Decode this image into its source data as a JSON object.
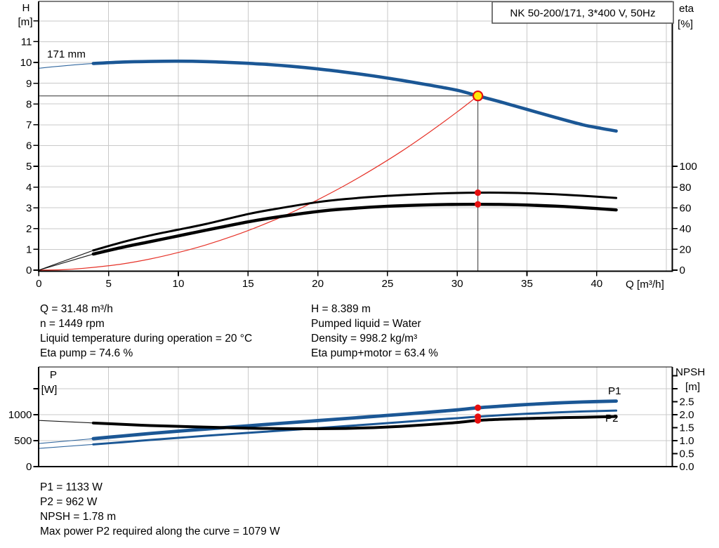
{
  "title_box": "NK 50-200/171, 3*400 V, 50Hz",
  "impeller_label": "171 mm",
  "colors": {
    "curve_blue": "#1b5795",
    "curve_red": "#e63228",
    "dot_red": "#e60f0f",
    "op_yellow": "#ffe90a",
    "grid": "#c9c9c9",
    "axis": "#000000",
    "crosshair": "#474747",
    "box_border": "#555555"
  },
  "labels": {
    "h_axis": [
      "H",
      "[m]"
    ],
    "eta_axis": [
      "eta",
      "[%]"
    ],
    "q_axis": "Q [m³/h]",
    "p_axis": [
      "P",
      "[W]"
    ],
    "npsh_axis": [
      "NPSH",
      "[m]"
    ],
    "p1": "P1",
    "p2": "P2"
  },
  "info_top": {
    "left": [
      "Q = 31.48 m³/h",
      "n = 1449 rpm",
      "Liquid temperature during operation = 20 °C",
      "Eta pump = 74.6 %"
    ],
    "right": [
      "H = 8.389 m",
      "Pumped liquid = Water",
      "Density = 998.2 kg/m³",
      "Eta pump+motor = 63.4 %"
    ]
  },
  "info_bottom": [
    "P1 = 1133 W",
    "P2 = 962 W",
    "NPSH = 1.78 m",
    "Max power P2 required along the curve = 1079 W"
  ],
  "operating_point": {
    "q": 31.48,
    "h": 8.389,
    "eta_pump": 74.6,
    "eta_pump_motor": 63.4,
    "p1": 1133,
    "p2": 962,
    "npsh": 1.78
  },
  "chart_data": [
    {
      "type": "line",
      "title": "NK 50-200/171, 3*400 V, 50Hz",
      "xlabel": "Q [m³/h]",
      "x_ticks": [
        {
          "v": 0,
          "t": "0"
        },
        {
          "v": 5,
          "t": "5"
        },
        {
          "v": 10,
          "t": "10"
        },
        {
          "v": 15,
          "t": "15"
        },
        {
          "v": 20,
          "t": "20"
        },
        {
          "v": 25,
          "t": "25"
        },
        {
          "v": 30,
          "t": "30"
        },
        {
          "v": 35,
          "t": "35"
        },
        {
          "v": 40,
          "t": "40"
        },
        {
          "v": 45,
          "t": ""
        }
      ],
      "y_left": {
        "label": "H [m]",
        "lim": [
          0,
          12.9
        ],
        "ticks": [
          {
            "v": 0,
            "t": "0"
          },
          {
            "v": 1,
            "t": "1"
          },
          {
            "v": 2,
            "t": "2"
          },
          {
            "v": 3,
            "t": "3"
          },
          {
            "v": 4,
            "t": "4"
          },
          {
            "v": 5,
            "t": "5"
          },
          {
            "v": 6,
            "t": "6"
          },
          {
            "v": 7,
            "t": "7"
          },
          {
            "v": 8,
            "t": "8"
          },
          {
            "v": 9,
            "t": "9"
          },
          {
            "v": 10,
            "t": "10"
          },
          {
            "v": 11,
            "t": "11"
          },
          {
            "v": 12,
            "t": ""
          }
        ]
      },
      "y_right": {
        "label": "eta [%]",
        "lim": [
          0,
          100
        ],
        "ticks": [
          {
            "v": 0,
            "t": "0"
          },
          {
            "v": 20,
            "t": "20"
          },
          {
            "v": 40,
            "t": "40"
          },
          {
            "v": 60,
            "t": "60"
          },
          {
            "v": 80,
            "t": "80"
          },
          {
            "v": 100,
            "t": "100"
          }
        ]
      },
      "series": [
        {
          "name": "system-curve",
          "axis": "left",
          "color": "curve_red",
          "width": 1.2,
          "points": [
            [
              0,
              0
            ],
            [
              2,
              0.03
            ],
            [
              4,
              0.14
            ],
            [
              6,
              0.3
            ],
            [
              8,
              0.54
            ],
            [
              10,
              0.85
            ],
            [
              12,
              1.22
            ],
            [
              14,
              1.66
            ],
            [
              16,
              2.17
            ],
            [
              18,
              2.74
            ],
            [
              20,
              3.39
            ],
            [
              22,
              4.1
            ],
            [
              24,
              4.88
            ],
            [
              26,
              5.72
            ],
            [
              28,
              6.64
            ],
            [
              30,
              7.62
            ],
            [
              31.48,
              8.39
            ]
          ]
        },
        {
          "name": "qh-171mm",
          "axis": "left",
          "color": "curve_blue",
          "width": 4.6,
          "thin_until": 3.9,
          "points": [
            [
              0,
              9.72
            ],
            [
              1,
              9.79
            ],
            [
              2,
              9.85
            ],
            [
              3,
              9.91
            ],
            [
              3.9,
              9.95
            ],
            [
              6,
              10.02
            ],
            [
              8,
              10.05
            ],
            [
              10,
              10.06
            ],
            [
              12,
              10.04
            ],
            [
              14,
              9.99
            ],
            [
              16,
              9.92
            ],
            [
              18,
              9.82
            ],
            [
              20,
              9.69
            ],
            [
              22,
              9.53
            ],
            [
              24,
              9.35
            ],
            [
              26,
              9.14
            ],
            [
              28,
              8.91
            ],
            [
              30,
              8.66
            ],
            [
              31.48,
              8.39
            ],
            [
              33,
              8.12
            ],
            [
              35,
              7.74
            ],
            [
              37,
              7.36
            ],
            [
              39,
              7.0
            ],
            [
              40.3,
              6.83
            ],
            [
              41.4,
              6.7
            ]
          ]
        },
        {
          "name": "eta-pump",
          "axis": "right",
          "color": "axis",
          "width": 3,
          "thin_until": 3.9,
          "points": [
            [
              0,
              0
            ],
            [
              3.9,
              19
            ],
            [
              6,
              27
            ],
            [
              8,
              33.5
            ],
            [
              10,
              39
            ],
            [
              12,
              44.5
            ],
            [
              15,
              54
            ],
            [
              17,
              59
            ],
            [
              20,
              65.5
            ],
            [
              22,
              68.5
            ],
            [
              25,
              71.5
            ],
            [
              28,
              73.5
            ],
            [
              30,
              74.3
            ],
            [
              31.48,
              74.6
            ],
            [
              33,
              74.6
            ],
            [
              35,
              74.1
            ],
            [
              37,
              73.1
            ],
            [
              39,
              71.6
            ],
            [
              41.4,
              69.5
            ]
          ]
        },
        {
          "name": "eta-pump-motor",
          "axis": "right",
          "color": "axis",
          "width": 4.4,
          "thin_until": 3.9,
          "points": [
            [
              0,
              0
            ],
            [
              3.9,
              15.5
            ],
            [
              6,
              22
            ],
            [
              8,
              27.5
            ],
            [
              10,
              33
            ],
            [
              12,
              38.5
            ],
            [
              15,
              46.5
            ],
            [
              17,
              51
            ],
            [
              20,
              56.5
            ],
            [
              22,
              59
            ],
            [
              25,
              61.5
            ],
            [
              28,
              62.9
            ],
            [
              30,
              63.3
            ],
            [
              31.48,
              63.4
            ],
            [
              33,
              63.3
            ],
            [
              35,
              62.7
            ],
            [
              37,
              61.7
            ],
            [
              39,
              60.2
            ],
            [
              41.4,
              58
            ]
          ]
        }
      ]
    },
    {
      "type": "line",
      "title": "Power and NPSH",
      "xlabel": "",
      "x_ticks": [
        {
          "v": 5,
          "t": ""
        },
        {
          "v": 10,
          "t": ""
        },
        {
          "v": 15,
          "t": ""
        },
        {
          "v": 20,
          "t": ""
        },
        {
          "v": 25,
          "t": ""
        },
        {
          "v": 30,
          "t": ""
        },
        {
          "v": 35,
          "t": ""
        },
        {
          "v": 40,
          "t": ""
        },
        {
          "v": 45,
          "t": ""
        }
      ],
      "y_left": {
        "label": "P [W]",
        "lim": [
          0,
          1920
        ],
        "ticks": [
          {
            "v": 0,
            "t": "0"
          },
          {
            "v": 500,
            "t": "500"
          },
          {
            "v": 1000,
            "t": "1000"
          },
          {
            "v": 1500,
            "t": ""
          }
        ]
      },
      "y_right": {
        "label": "NPSH [m]",
        "lim": [
          0,
          3.8
        ],
        "ticks": [
          {
            "v": 0,
            "t": "0.0"
          },
          {
            "v": 0.5,
            "t": "0.5"
          },
          {
            "v": 1,
            "t": "1.0"
          },
          {
            "v": 1.5,
            "t": "1.5"
          },
          {
            "v": 2,
            "t": "2.0"
          },
          {
            "v": 2.5,
            "t": "2.5"
          },
          {
            "v": 3,
            "t": ""
          },
          {
            "v": 3.5,
            "t": ""
          }
        ]
      },
      "series": [
        {
          "name": "p1",
          "axis": "left",
          "color": "curve_blue",
          "width": 4.8,
          "thin_until": 3.9,
          "points": [
            [
              0,
              445
            ],
            [
              3.9,
              538
            ],
            [
              6,
              590
            ],
            [
              8,
              638
            ],
            [
              10,
              682
            ],
            [
              12,
              724
            ],
            [
              15,
              786
            ],
            [
              18,
              846
            ],
            [
              20,
              886
            ],
            [
              22,
              926
            ],
            [
              25,
              986
            ],
            [
              28,
              1048
            ],
            [
              30,
              1092
            ],
            [
              31.48,
              1133
            ],
            [
              33,
              1162
            ],
            [
              35,
              1196
            ],
            [
              37,
              1224
            ],
            [
              39,
              1245
            ],
            [
              41.4,
              1262
            ]
          ]
        },
        {
          "name": "p2",
          "axis": "left",
          "color": "curve_blue",
          "width": 3,
          "thin_until": 3.9,
          "points": [
            [
              0,
              350
            ],
            [
              3.9,
              428
            ],
            [
              6,
              470
            ],
            [
              8,
              514
            ],
            [
              10,
              554
            ],
            [
              12,
              594
            ],
            [
              15,
              650
            ],
            [
              18,
              704
            ],
            [
              20,
              742
            ],
            [
              22,
              780
            ],
            [
              25,
              838
            ],
            [
              28,
              898
            ],
            [
              30,
              933
            ],
            [
              31.48,
              962
            ],
            [
              33,
              988
            ],
            [
              35,
              1018
            ],
            [
              37,
              1042
            ],
            [
              39,
              1062
            ],
            [
              41.4,
              1079
            ]
          ]
        },
        {
          "name": "npsh",
          "axis": "right",
          "color": "axis",
          "width": 4,
          "thin_until": 3.9,
          "points": [
            [
              0,
              1.78
            ],
            [
              3.9,
              1.68
            ],
            [
              6,
              1.63
            ],
            [
              8,
              1.58
            ],
            [
              10,
              1.55
            ],
            [
              12,
              1.52
            ],
            [
              15,
              1.48
            ],
            [
              18,
              1.46
            ],
            [
              20,
              1.46
            ],
            [
              22,
              1.47
            ],
            [
              24,
              1.5
            ],
            [
              26,
              1.55
            ],
            [
              28,
              1.62
            ],
            [
              30,
              1.7
            ],
            [
              31.48,
              1.78
            ],
            [
              33,
              1.82
            ],
            [
              35,
              1.85
            ],
            [
              37,
              1.88
            ],
            [
              39,
              1.9
            ],
            [
              41.4,
              1.93
            ]
          ]
        }
      ]
    }
  ]
}
